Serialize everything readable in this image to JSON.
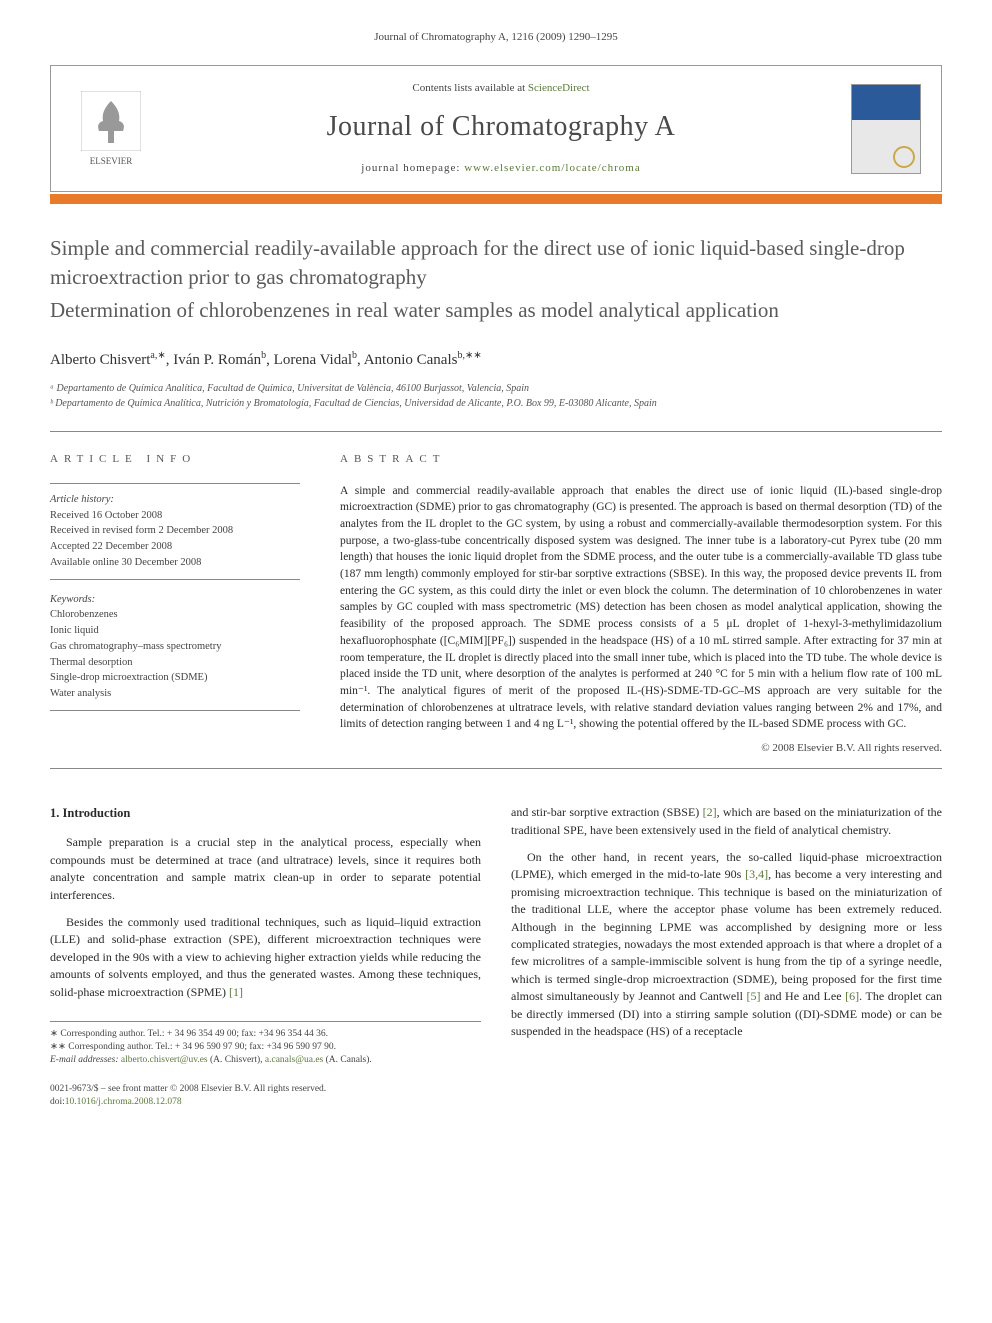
{
  "running_header": "Journal of Chromatography A, 1216 (2009) 1290–1295",
  "masthead": {
    "contents_prefix": "Contents lists available at ",
    "contents_link": "ScienceDirect",
    "journal": "Journal of Chromatography A",
    "homepage_prefix": "journal homepage: ",
    "homepage_url": "www.elsevier.com/locate/chroma",
    "publisher": "ELSEVIER"
  },
  "title": "Simple and commercial readily-available approach for the direct use of ionic liquid-based single-drop microextraction prior to gas chromatography",
  "subtitle": "Determination of chlorobenzenes in real water samples as model analytical application",
  "authors_html": "Alberto Chisvert<sup>a,∗</sup>, Iván P. Román<sup>b</sup>, Lorena Vidal<sup>b</sup>, Antonio Canals<sup>b,∗∗</sup>",
  "affiliations": [
    "ᵃ Departamento de Química Analítica, Facultad de Química, Universitat de València, 46100 Burjassot, Valencia, Spain",
    "ᵇ Departamento de Química Analítica, Nutrición y Bromatología, Facultad de Ciencias, Universidad de Alicante, P.O. Box 99, E-03080 Alicante, Spain"
  ],
  "info": {
    "label": "article info",
    "history_title": "Article history:",
    "history": [
      "Received 16 October 2008",
      "Received in revised form 2 December 2008",
      "Accepted 22 December 2008",
      "Available online 30 December 2008"
    ],
    "keywords_title": "Keywords:",
    "keywords": [
      "Chlorobenzenes",
      "Ionic liquid",
      "Gas chromatography–mass spectrometry",
      "Thermal desorption",
      "Single-drop microextraction (SDME)",
      "Water analysis"
    ]
  },
  "abstract": {
    "label": "abstract",
    "text": "A simple and commercial readily-available approach that enables the direct use of ionic liquid (IL)-based single-drop microextraction (SDME) prior to gas chromatography (GC) is presented. The approach is based on thermal desorption (TD) of the analytes from the IL droplet to the GC system, by using a robust and commercially-available thermodesorption system. For this purpose, a two-glass-tube concentrically disposed system was designed. The inner tube is a laboratory-cut Pyrex tube (20 mm length) that houses the ionic liquid droplet from the SDME process, and the outer tube is a commercially-available TD glass tube (187 mm length) commonly employed for stir-bar sorptive extractions (SBSE). In this way, the proposed device prevents IL from entering the GC system, as this could dirty the inlet or even block the column. The determination of 10 chlorobenzenes in water samples by GC coupled with mass spectrometric (MS) detection has been chosen as model analytical application, showing the feasibility of the proposed approach. The SDME process consists of a 5 μL droplet of 1-hexyl-3-methylimidazolium hexafluorophosphate ([C₆MIM][PF₆]) suspended in the headspace (HS) of a 10 mL stirred sample. After extracting for 37 min at room temperature, the IL droplet is directly placed into the small inner tube, which is placed into the TD tube. The whole device is placed inside the TD unit, where desorption of the analytes is performed at 240 °C for 5 min with a helium flow rate of 100 mL min⁻¹. The analytical figures of merit of the proposed IL-(HS)-SDME-TD-GC–MS approach are very suitable for the determination of chlorobenzenes at ultratrace levels, with relative standard deviation values ranging between 2% and 17%, and limits of detection ranging between 1 and 4 ng L⁻¹, showing the potential offered by the IL-based SDME process with GC.",
    "copyright": "© 2008 Elsevier B.V. All rights reserved."
  },
  "body": {
    "heading": "1.  Introduction",
    "col1_p1": "Sample preparation is a crucial step in the analytical process, especially when compounds must be determined at trace (and ultratrace) levels, since it requires both analyte concentration and sample matrix clean-up in order to separate potential interferences.",
    "col1_p2_a": "Besides the commonly used traditional techniques, such as liquid–liquid extraction (LLE) and solid-phase extraction (SPE), different microextraction techniques were developed in the 90s with a view to achieving higher extraction yields while reducing the amounts of solvents employed, and thus the generated wastes. Among these techniques, solid-phase microextraction (SPME) ",
    "ref1": "[1]",
    "col2_p1_a": "and stir-bar sorptive extraction (SBSE) ",
    "ref2": "[2]",
    "col2_p1_b": ", which are based on the miniaturization of the traditional SPE, have been extensively used in the field of analytical chemistry.",
    "col2_p2_a": "On the other hand, in recent years, the so-called liquid-phase microextraction (LPME), which emerged in the mid-to-late 90s ",
    "ref34": "[3,4]",
    "col2_p2_b": ", has become a very interesting and promising microextraction technique. This technique is based on the miniaturization of the traditional LLE, where the acceptor phase volume has been extremely reduced. Although in the beginning LPME was accomplished by designing more or less complicated strategies, nowadays the most extended approach is that where a droplet of a few microlitres of a sample-immiscible solvent is hung from the tip of a syringe needle, which is termed single-drop microextraction (SDME), being proposed for the first time almost simultaneously by Jeannot and Cantwell ",
    "ref5": "[5]",
    "col2_p2_c": " and He and Lee ",
    "ref6": "[6]",
    "col2_p2_d": ". The droplet can be directly immersed (DI) into a stirring sample solution ((DI)-SDME mode) or can be suspended in the headspace (HS) of a receptacle"
  },
  "footnotes": {
    "line1": "∗ Corresponding author. Tel.: + 34 96 354 49 00; fax: +34 96 354 44 36.",
    "line2": "∗∗ Corresponding author. Tel.: + 34 96 590 97 90; fax: +34 96 590 97 90.",
    "email_label": "E-mail addresses: ",
    "email1": "alberto.chisvert@uv.es",
    "email1_who": " (A. Chisvert), ",
    "email2": "a.canals@ua.es",
    "email2_who": " (A. Canals)."
  },
  "footer": {
    "line1": "0021-9673/$ – see front matter © 2008 Elsevier B.V. All rights reserved.",
    "doi_label": "doi:",
    "doi": "10.1016/j.chroma.2008.12.078"
  },
  "colors": {
    "link": "#5a7a3a",
    "orange_bar": "#e87a2a",
    "title_gray": "#5a5a5a"
  }
}
